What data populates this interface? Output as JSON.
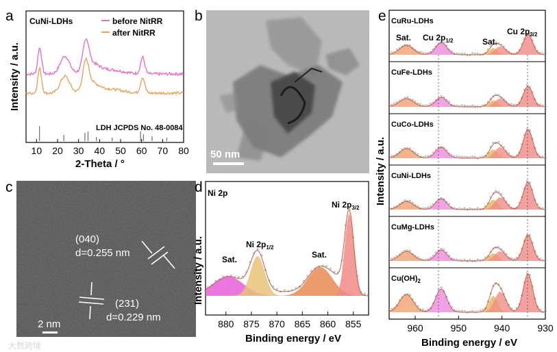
{
  "panel_a": {
    "label": "a",
    "sample": "CuNi-LDHs",
    "legend_before": "before NitRR",
    "legend_after": "after NitRR",
    "ref": "LDH JCPDS No. 48-0084",
    "xlabel": "2-Theta / °",
    "ylabel": "Intensity / a.u.",
    "xticks": [
      "10",
      "20",
      "30",
      "40",
      "50",
      "60",
      "70",
      "80"
    ],
    "colors": {
      "before": "#e86fc8",
      "after": "#e9a25c"
    }
  },
  "panel_b": {
    "label": "b",
    "scale": "50 nm"
  },
  "panel_c": {
    "label": "c",
    "plane1": "(040)",
    "d1": "d=0.255 nm",
    "plane2": "(231)",
    "d2": "d=0.229 nm",
    "scale": "2 nm"
  },
  "panel_d": {
    "label": "d",
    "title": "Ni 2p",
    "sat1": "Sat.",
    "ni_half_base": "Ni 2p",
    "ni_half_sub": "1/2",
    "sat2": "Sat.",
    "ni_3half_base": "Ni 2p",
    "ni_3half_sub": "3/2",
    "xlabel": "Binding energy / eV",
    "ylabel": "Intensity / a.u.",
    "xticks": [
      "880",
      "875",
      "870",
      "865",
      "860",
      "855"
    ]
  },
  "panel_e": {
    "label": "e",
    "ylabel": "Intensity / a.u.",
    "xlabel": "Binding energy / eV",
    "xticks": [
      "960",
      "950",
      "940",
      "930"
    ],
    "top_sat1": "Sat.",
    "top_cu_half_base": "Cu 2p",
    "top_cu_half_sub": "1/2",
    "top_sat2": "Sat.",
    "top_cu_3half_base": "Cu 2p",
    "top_cu_3half_sub": "3/2",
    "samples": [
      "CuRu-LDHs",
      "CuFe-LDHs",
      "CuCo-LDHs",
      "CuNi-LDHs",
      "CuMg-LDHs"
    ],
    "sample_last_base": "Cu(OH)",
    "sample_last_sub": "2"
  },
  "watermark": "大数跨境",
  "chart_data": [
    {
      "type": "line",
      "title": "CuNi-LDHs",
      "xlabel": "2-Theta / °",
      "ylabel": "Intensity / a.u.",
      "xlim": [
        5,
        80
      ],
      "series": [
        {
          "name": "before NitRR",
          "peaks": [
            11.5,
            23.5,
            33.5,
            60.5
          ]
        },
        {
          "name": "after NitRR",
          "peaks": [
            11.5,
            23.5,
            33.5,
            60.5
          ]
        }
      ],
      "reference_lines": [
        11.4,
        23.0,
        33.0,
        34.5,
        38.5,
        46.0,
        59.5,
        60.9,
        65.0,
        72.0
      ]
    },
    {
      "type": "line",
      "title": "Ni 2p",
      "xlabel": "Binding energy / eV",
      "ylabel": "Intensity / a.u.",
      "xlim": [
        884,
        852
      ],
      "peaks": [
        {
          "label": "Sat.",
          "position": 879.5
        },
        {
          "label": "Ni 2p1/2",
          "position": 873.8
        },
        {
          "label": "Sat.",
          "position": 861.5
        },
        {
          "label": "Ni 2p3/2",
          "position": 855.8
        }
      ]
    },
    {
      "type": "line",
      "xlabel": "Binding energy / eV",
      "ylabel": "Intensity / a.u.",
      "xlim": [
        966,
        930
      ],
      "series": [
        "CuRu-LDHs",
        "CuFe-LDHs",
        "CuCo-LDHs",
        "CuNi-LDHs",
        "CuMg-LDHs",
        "Cu(OH)2"
      ],
      "peaks": [
        {
          "label": "Sat.",
          "position": 962
        },
        {
          "label": "Cu 2p1/2",
          "position": 954
        },
        {
          "label": "Sat.",
          "position": 943
        },
        {
          "label": "Cu 2p3/2",
          "position": 934
        }
      ]
    }
  ]
}
